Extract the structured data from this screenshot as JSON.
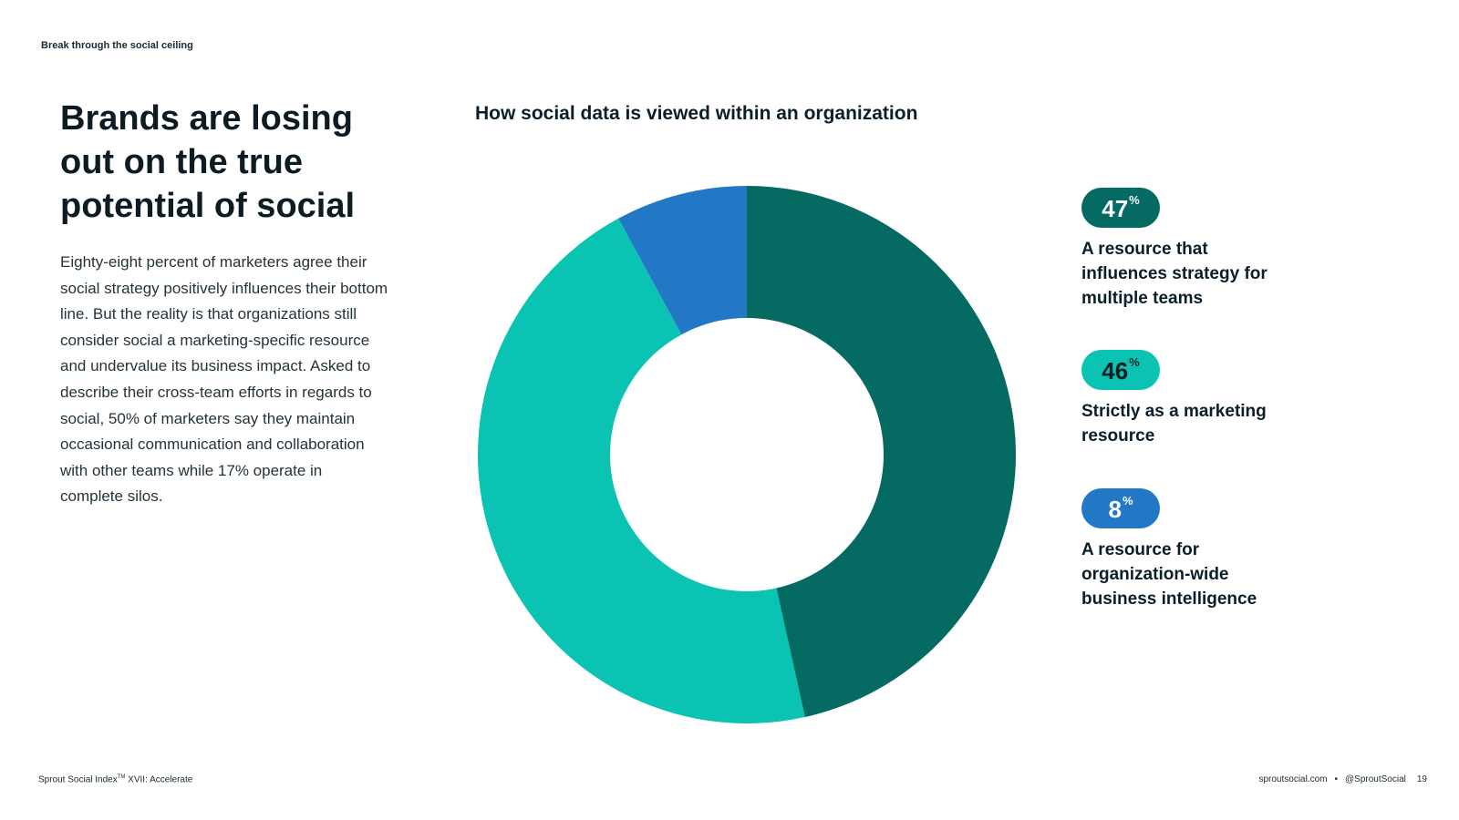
{
  "header": {
    "running_title": "Break through the social ceiling"
  },
  "main": {
    "headline": "Brands are losing out on the true potential of social",
    "body": "Eighty-eight percent of marketers agree their social strategy positively influences their bottom line. But the reality is that organizations still consider social a marketing-specific resource and undervalue its business impact. Asked to describe their cross-team efforts in regards to social, 50% of marketers say they maintain occasional communication and collaboration with other teams while 17% operate in complete silos."
  },
  "chart_data": {
    "type": "pie",
    "title": "How social data is viewed within an organization",
    "donut": true,
    "unit": "%",
    "slices": [
      {
        "value": 47,
        "label": "A resource that influences strategy for multiple teams",
        "color": "#046a62"
      },
      {
        "value": 46,
        "label": "Strictly as a marketing resource",
        "color": "#0ac3b3"
      },
      {
        "value": 8,
        "label": "A resource for organization-wide business intelligence",
        "color": "#2378c6"
      }
    ],
    "legend_placement": "right"
  },
  "footer": {
    "publication": "Sprout Social Index",
    "trademark": "TM",
    "edition": " XVII: Accelerate",
    "website": "sproutsocial.com",
    "separator": "•",
    "handle": "@SproutSocial",
    "page_number": "19"
  }
}
